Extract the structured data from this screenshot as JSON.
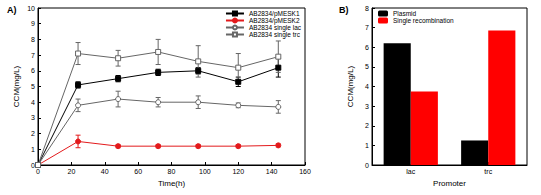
{
  "chart_data": [
    {
      "type": "line",
      "title": "A)",
      "x_label": "Time(h)",
      "y_label": "CCM(mg/L)",
      "xlim": [
        0,
        160
      ],
      "xticks": [
        0,
        20,
        40,
        60,
        80,
        100,
        120,
        140,
        160
      ],
      "ylim": [
        0,
        10
      ],
      "yticks": [
        0,
        1,
        2,
        3,
        4,
        5,
        6,
        7,
        8,
        9,
        10
      ],
      "grid": false,
      "legend": "upper right",
      "x": [
        0,
        24,
        48,
        72,
        96,
        120,
        144
      ],
      "series": [
        {
          "name": "AB2834/pMESK1",
          "color": "#000000",
          "marker": "square",
          "values": [
            0,
            5.1,
            5.5,
            5.9,
            6.0,
            5.3,
            6.2
          ],
          "errors": [
            0,
            0.2,
            0.2,
            0.2,
            0.2,
            0.3,
            0.6
          ]
        },
        {
          "name": "AB2834/pMESK2",
          "color": "#e31a1c",
          "marker": "circle",
          "values": [
            0,
            1.5,
            1.2,
            1.2,
            1.2,
            1.2,
            1.25
          ],
          "errors": [
            0,
            0.4,
            0.1,
            0.1,
            0.1,
            0.1,
            0.1
          ]
        },
        {
          "name": "AB2834 single lac",
          "color": "#666666",
          "marker": "open_circle",
          "values": [
            0,
            3.8,
            4.2,
            4.0,
            4.0,
            3.8,
            3.7
          ],
          "errors": [
            0,
            0.4,
            0.5,
            0.3,
            0.4,
            0.15,
            0.4
          ]
        },
        {
          "name": "AB2834 single trc",
          "color": "#666666",
          "marker": "open_square",
          "values": [
            0,
            7.1,
            6.8,
            7.2,
            6.6,
            6.2,
            6.9
          ],
          "errors": [
            0,
            0.7,
            0.5,
            0.8,
            1.0,
            0.9,
            1.0
          ]
        }
      ]
    },
    {
      "type": "bar",
      "title": "B)",
      "x_label": "Promoter",
      "y_label": "CCM(mg/L)",
      "categories": [
        "lac",
        "trc"
      ],
      "ylim": [
        0,
        8
      ],
      "yticks": [
        0,
        1,
        2,
        3,
        4,
        5,
        6,
        7,
        8
      ],
      "grid": false,
      "legend": "upper left",
      "series": [
        {
          "name": "Plasmid",
          "color": "#000000",
          "values": [
            6.2,
            1.25
          ]
        },
        {
          "name": "Single recombination",
          "color": "#ff0000",
          "values": [
            3.75,
            6.85
          ]
        }
      ]
    }
  ]
}
